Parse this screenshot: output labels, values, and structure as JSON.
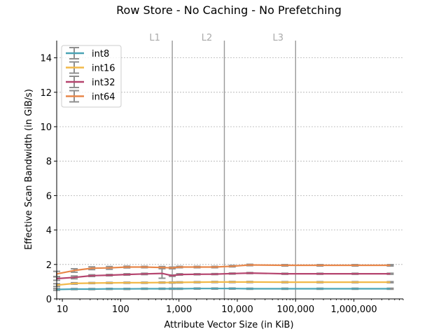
{
  "chart_data": {
    "type": "line",
    "title": "Row Store - No Caching - No Prefetching",
    "xlabel": "Attribute Vector Size (in KiB)",
    "ylabel": "Effective Scan Bandwidth (in GiB/s)",
    "x_scale": "log",
    "xlim": [
      8,
      7000000
    ],
    "ylim": [
      0,
      15
    ],
    "x_ticks": [
      10,
      100,
      1000,
      10000,
      100000,
      1000000
    ],
    "x_tick_labels": [
      "10",
      "100",
      "1,000",
      "10,000",
      "100,000",
      "1,000,000"
    ],
    "y_ticks": [
      0,
      2,
      4,
      6,
      8,
      10,
      12,
      14
    ],
    "y_tick_labels": [
      "0",
      "2",
      "4",
      "6",
      "8",
      "10",
      "12",
      "14"
    ],
    "grid": "horizontal dashed",
    "legend_position": "top-left",
    "cache_levels": [
      {
        "label": "L1",
        "x": 768
      },
      {
        "label": "L2",
        "x": 6000
      },
      {
        "label": "L3",
        "x": 100000
      }
    ],
    "x": [
      8,
      16,
      32,
      64,
      128,
      256,
      512,
      768,
      1024,
      2048,
      4096,
      8192,
      16384,
      65536,
      262144,
      1048576,
      4194304
    ],
    "series": [
      {
        "name": "int8",
        "color": "#4aa3b5",
        "values": [
          0.55,
          0.57,
          0.57,
          0.58,
          0.58,
          0.59,
          0.59,
          0.59,
          0.59,
          0.6,
          0.6,
          0.6,
          0.59,
          0.59,
          0.59,
          0.59,
          0.59
        ],
        "errors": [
          0.05,
          0.03,
          0.03,
          0.03,
          0.03,
          0.03,
          0.03,
          0.03,
          0.03,
          0.03,
          0.03,
          0.03,
          0.03,
          0.03,
          0.03,
          0.03,
          0.03
        ]
      },
      {
        "name": "int16",
        "color": "#f2b949",
        "values": [
          0.8,
          0.9,
          0.92,
          0.93,
          0.94,
          0.94,
          0.95,
          0.95,
          0.96,
          0.97,
          0.98,
          0.98,
          0.98,
          0.97,
          0.97,
          0.97,
          0.97
        ],
        "errors": [
          0.08,
          0.04,
          0.03,
          0.03,
          0.03,
          0.03,
          0.03,
          0.03,
          0.03,
          0.03,
          0.03,
          0.03,
          0.03,
          0.03,
          0.03,
          0.03,
          0.03
        ]
      },
      {
        "name": "int32",
        "color": "#b5446e",
        "values": [
          1.18,
          1.25,
          1.35,
          1.38,
          1.42,
          1.45,
          1.48,
          1.35,
          1.42,
          1.43,
          1.44,
          1.47,
          1.5,
          1.46,
          1.46,
          1.46,
          1.46
        ],
        "errors": [
          0.1,
          0.08,
          0.05,
          0.04,
          0.04,
          0.04,
          0.28,
          0.04,
          0.04,
          0.03,
          0.03,
          0.03,
          0.03,
          0.03,
          0.03,
          0.03,
          0.03
        ]
      },
      {
        "name": "int64",
        "color": "#e8874a",
        "values": [
          1.45,
          1.65,
          1.78,
          1.8,
          1.85,
          1.85,
          1.82,
          1.8,
          1.85,
          1.85,
          1.85,
          1.9,
          1.97,
          1.95,
          1.95,
          1.95,
          1.95
        ],
        "errors": [
          0.15,
          0.1,
          0.08,
          0.08,
          0.05,
          0.04,
          0.06,
          0.05,
          0.04,
          0.04,
          0.04,
          0.04,
          0.04,
          0.04,
          0.04,
          0.04,
          0.04
        ]
      }
    ]
  }
}
